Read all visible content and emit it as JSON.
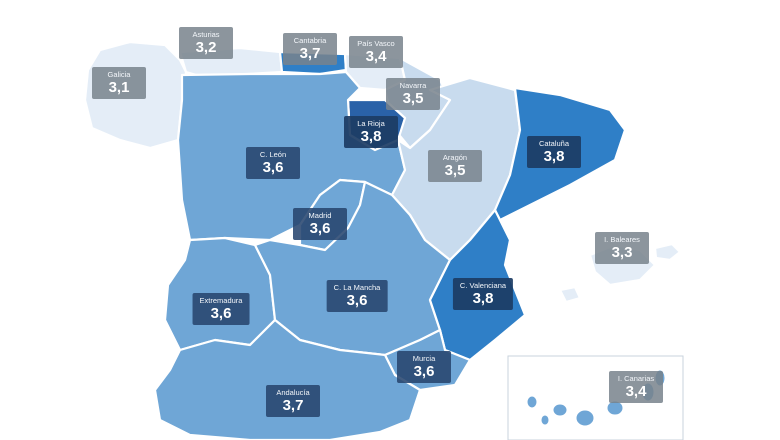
{
  "colors": {
    "background": "#ffffff",
    "region_mid": "#6fa6d6",
    "region_light": "#c8dbee",
    "region_dark": "#2f7fc7",
    "region_navy": "#2a62a8",
    "region_pale": "#e4edf7",
    "label_dark_bg": "#284670",
    "label_gray_bg": "#78828c"
  },
  "regions": [
    {
      "id": "galicia",
      "name": "Galicia",
      "value": "3,1"
    },
    {
      "id": "asturias",
      "name": "Asturias",
      "value": "3,2"
    },
    {
      "id": "cantabria",
      "name": "Cantabria",
      "value": "3,7"
    },
    {
      "id": "pais-vasco",
      "name": "País Vasco",
      "value": "3,4"
    },
    {
      "id": "navarra",
      "name": "Navarra",
      "value": "3,5"
    },
    {
      "id": "la-rioja",
      "name": "La Rioja",
      "value": "3,8"
    },
    {
      "id": "cataluna",
      "name": "Cataluña",
      "value": "3,8"
    },
    {
      "id": "c-leon",
      "name": "C. León",
      "value": "3,6"
    },
    {
      "id": "aragon",
      "name": "Aragón",
      "value": "3,5"
    },
    {
      "id": "madrid",
      "name": "Madrid",
      "value": "3,6"
    },
    {
      "id": "i-baleares",
      "name": "I. Baleares",
      "value": "3,3"
    },
    {
      "id": "extremadura",
      "name": "Extremadura",
      "value": "3,6"
    },
    {
      "id": "c-la-mancha",
      "name": "C. La Mancha",
      "value": "3,6"
    },
    {
      "id": "c-valenciana",
      "name": "C. Valenciana",
      "value": "3,8"
    },
    {
      "id": "murcia",
      "name": "Murcia",
      "value": "3,6"
    },
    {
      "id": "andalucia",
      "name": "Andalucía",
      "value": "3,7"
    },
    {
      "id": "i-canarias",
      "name": "I. Canarias",
      "value": "3,4"
    }
  ]
}
